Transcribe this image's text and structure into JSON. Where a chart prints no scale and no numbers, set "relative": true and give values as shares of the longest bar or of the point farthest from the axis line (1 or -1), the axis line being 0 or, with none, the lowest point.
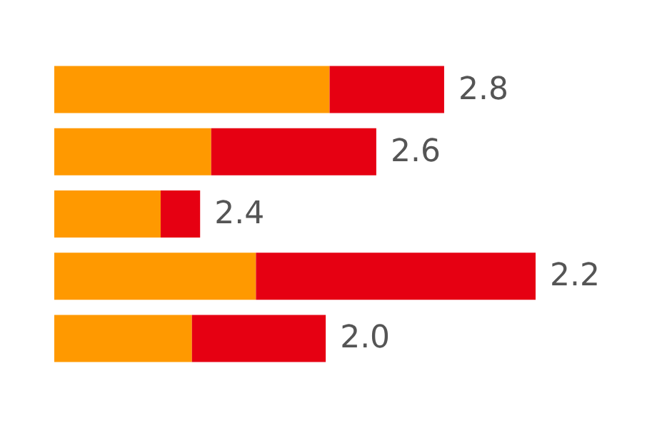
{
  "chart_data": {
    "type": "bar",
    "orientation": "horizontal",
    "stacked": true,
    "relative": true,
    "categories": [
      "2.8",
      "2.6",
      "2.4",
      "2.2",
      "2.0"
    ],
    "series": [
      {
        "color": "#ff9900",
        "values": [
          0.572,
          0.326,
          0.221,
          0.419,
          0.286
        ]
      },
      {
        "color": "#e60012",
        "values": [
          0.238,
          0.343,
          0.082,
          0.581,
          0.278
        ]
      }
    ]
  }
}
